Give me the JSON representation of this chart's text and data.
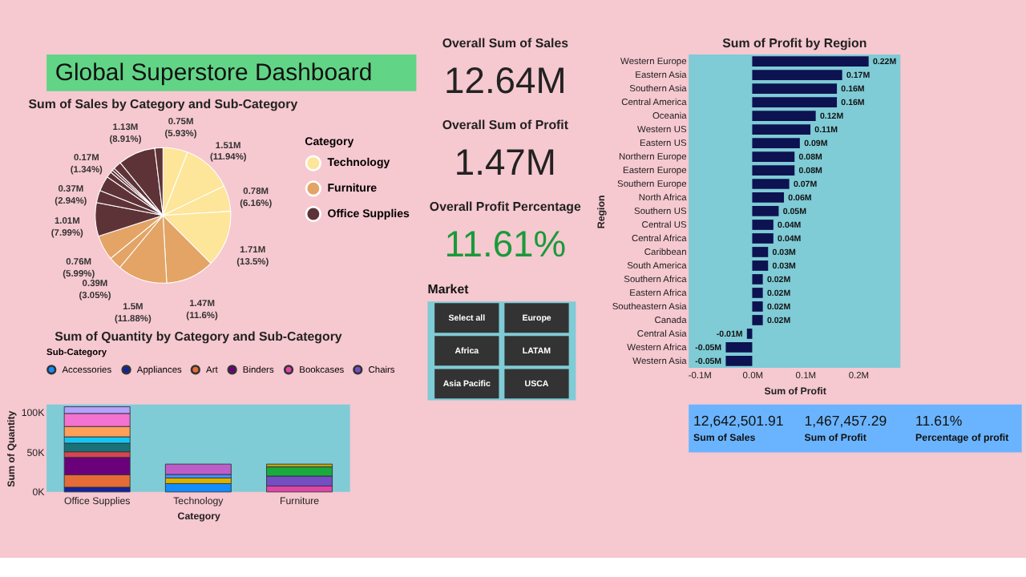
{
  "chart_data": [
    {
      "type": "other",
      "title": "Global Superstore Dashboard"
    },
    {
      "type": "pie",
      "title": "Sum of Sales by Category and Sub-Category",
      "legend_title": "Category",
      "legend": "right",
      "categories": [
        "Technology",
        null,
        null,
        null,
        "Furniture",
        null,
        null,
        null,
        "Office Supplies",
        null,
        null,
        null,
        null,
        null,
        null,
        null,
        null
      ],
      "values": [
        5.93,
        11.94,
        6.16,
        13.5,
        11.6,
        11.88,
        3.05,
        5.99,
        7.99,
        2.94,
        3.65,
        1.34,
        0.65,
        0.58,
        1.94,
        8.91,
        1.95
      ],
      "value_labels": [
        "0.75M (5.93%)",
        "1.51M (11.94%)",
        "0.78M (6.16%)",
        "1.71M (13.5%)",
        "1.47M (11.6%)",
        "1.5M (11.88%)",
        "0.39M (3.05%)",
        "0.76M (5.99%)",
        "1.01M (7.99%)",
        "0.37M (2.94%)",
        null,
        "0.17M (1.34%)",
        null,
        null,
        null,
        "1.13M (8.91%)",
        null
      ],
      "colors": [
        "#fde59a",
        "#fde59a",
        "#fde59a",
        "#fde59a",
        "#e3a465",
        "#e3a465",
        "#e3a465",
        "#e3a465",
        "#5e3338",
        "#5e3338",
        "#5e3338",
        "#5e3338",
        "#5e3338",
        "#5e3338",
        "#5e3338",
        "#5e3338",
        "#5e3338"
      ]
    },
    {
      "type": "bar",
      "stacked": true,
      "title": "Sum of Quantity by Category and Sub-Category",
      "xlabel": "Category",
      "ylabel": "Sum of Quantity",
      "legend_title": "Sub-Category",
      "legend": "top",
      "categories": [
        "Office Supplies",
        "Technology",
        "Furniture"
      ],
      "ylim": [
        0,
        110000
      ],
      "yticks": [
        {
          "value": 0,
          "label": "0K"
        },
        {
          "value": 50000,
          "label": "50K"
        },
        {
          "value": 100000,
          "label": "100K"
        }
      ],
      "series": [
        {
          "name": "Accessories",
          "color": "#118dff",
          "values": [
            null,
            10500,
            null
          ]
        },
        {
          "name": "Appliances",
          "color": "#12239e",
          "values": [
            6000,
            null,
            null
          ]
        },
        {
          "name": "Art",
          "color": "#e66c37",
          "values": [
            15500,
            null,
            null
          ]
        },
        {
          "name": "Binders",
          "color": "#6b007b",
          "values": [
            22000,
            null,
            null
          ]
        },
        {
          "name": "Bookcases",
          "color": "#e044a7",
          "values": [
            null,
            null,
            7500
          ]
        },
        {
          "name": "Chairs",
          "color": "#744ec2",
          "values": [
            null,
            null,
            12500
          ]
        },
        {
          "color": "#d9b300",
          "values": [
            null,
            7000,
            null
          ]
        },
        {
          "color": "#d64550",
          "values": [
            7000,
            null,
            null
          ]
        },
        {
          "color": "#197278",
          "values": [
            10800,
            null,
            null
          ]
        },
        {
          "color": "#1aab40",
          "values": [
            null,
            null,
            11500
          ]
        },
        {
          "color": "#15c6f4",
          "values": [
            8000,
            null,
            null
          ]
        },
        {
          "color": "#4092ff",
          "values": [
            null,
            4500,
            null
          ]
        },
        {
          "color": "#ffa058",
          "values": [
            13000,
            null,
            null
          ]
        },
        {
          "color": "#be5dc9",
          "values": [
            null,
            13000,
            null
          ]
        },
        {
          "color": "#f472d0",
          "values": [
            16400,
            null,
            null
          ]
        },
        {
          "color": "#b5a1ff",
          "values": [
            8400,
            null,
            null
          ]
        },
        {
          "color": "#c4a200",
          "values": [
            null,
            null,
            3500
          ]
        }
      ]
    },
    {
      "type": "other",
      "title": "Overall Sum of Sales",
      "annotations": [
        "12.64M"
      ]
    },
    {
      "type": "other",
      "title": "Overall Sum of Profit",
      "annotations": [
        "1.47M"
      ]
    },
    {
      "type": "other",
      "title": "Overall Profit Percentage",
      "annotations": [
        "11.61%"
      ],
      "color": "#1a9a3a"
    },
    {
      "type": "other",
      "title": "Market",
      "categories": [
        "Select all",
        "Europe",
        "Africa",
        "LATAM",
        "Asia Pacific",
        "USCA"
      ]
    },
    {
      "type": "bar",
      "orientation": "horizontal",
      "title": "Sum of Profit by Region",
      "xlabel": "Sum of Profit",
      "ylabel": "Region",
      "color": "#0d1250",
      "categories": [
        "Western Europe",
        "Eastern Asia",
        "Southern Asia",
        "Central America",
        "Oceania",
        "Western US",
        "Eastern US",
        "Northern Europe",
        "Eastern Europe",
        "Southern Europe",
        "North Africa",
        "Southern US",
        "Central US",
        "Central Africa",
        "Caribbean",
        "South America",
        "Southern Africa",
        "Eastern Africa",
        "Southeastern Asia",
        "Canada",
        "Central Asia",
        "Western Africa",
        "Western Asia"
      ],
      "values": [
        0.22,
        0.17,
        0.16,
        0.16,
        0.12,
        0.11,
        0.09,
        0.08,
        0.08,
        0.07,
        0.06,
        0.05,
        0.04,
        0.04,
        0.03,
        0.03,
        0.02,
        0.02,
        0.02,
        0.02,
        -0.01,
        -0.05,
        -0.05
      ],
      "value_labels": [
        "0.22M",
        "0.17M",
        "0.16M",
        "0.16M",
        "0.12M",
        "0.11M",
        "0.09M",
        "0.08M",
        "0.08M",
        "0.07M",
        "0.06M",
        "0.05M",
        "0.04M",
        "0.04M",
        "0.03M",
        "0.03M",
        "0.02M",
        "0.02M",
        "0.02M",
        "0.02M",
        "-0.01M",
        "-0.05M",
        "-0.05M"
      ],
      "xlim": [
        -0.12,
        0.28
      ],
      "xticks": [
        {
          "value": -0.1,
          "label": "-0.1M"
        },
        {
          "value": 0,
          "label": "0.0M"
        },
        {
          "value": 0.1,
          "label": "0.1M"
        },
        {
          "value": 0.2,
          "label": "0.2M"
        }
      ]
    },
    {
      "type": "other",
      "categories": [
        "Sum of Sales",
        "Sum of Profit",
        "Percentage of profit"
      ],
      "annotations": [
        "12,642,501.91",
        "1,467,457.29",
        "11.61%"
      ]
    }
  ]
}
